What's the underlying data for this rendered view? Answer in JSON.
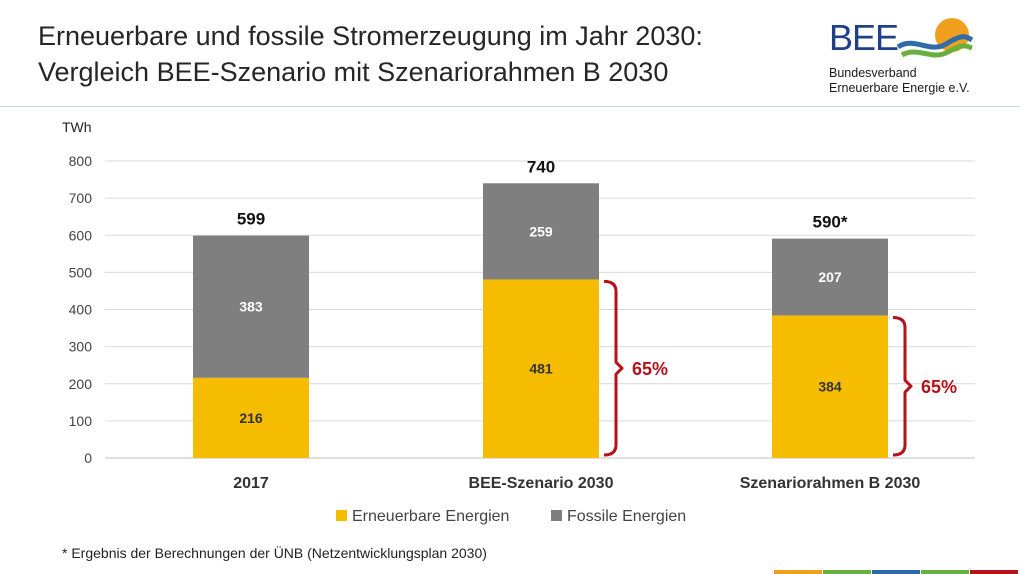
{
  "header": {
    "title_line1": "Erneuerbare und fossile Stromerzeugung im Jahr 2030:",
    "title_line2": "Vergleich BEE-Szenario mit Szenariorahmen B 2030"
  },
  "logo": {
    "name": "BEE",
    "line1": "Bundesverband",
    "line2": "Erneuerbare Energie e.V."
  },
  "footnote": "* Ergebnis der Berechnungen der ÜNB (Netzentwicklungsplan 2030)",
  "colors": {
    "renewable": "#F5BC00",
    "fossil": "#7F7F7F",
    "bracket": "#B5121B",
    "grid": "#D9D9D9",
    "logo_blue": "#1F3F87",
    "logo_green": "#6AAF3D",
    "logo_orange": "#F0A01E",
    "bottom_stripe": [
      "#F0A01E",
      "#6AAF3D",
      "#2D6CA8",
      "#6AAF3D",
      "#B5121B"
    ]
  },
  "chart_data": {
    "type": "bar",
    "stacked": true,
    "ylabel": "TWh",
    "ylim": [
      0,
      800
    ],
    "yticks": [
      0,
      100,
      200,
      300,
      400,
      500,
      600,
      700,
      800
    ],
    "grid": true,
    "legend_position": "bottom",
    "categories": [
      "2017",
      "BEE-Szenario 2030",
      "Szenariorahmen B 2030"
    ],
    "series": [
      {
        "name": "Erneuerbare Energien",
        "values": [
          216,
          481,
          384
        ]
      },
      {
        "name": "Fossile Energien",
        "values": [
          383,
          259,
          207
        ]
      }
    ],
    "totals": [
      "599",
      "740",
      "590*"
    ],
    "annotations": [
      {
        "category": "BEE-Szenario 2030",
        "text": "65%"
      },
      {
        "category": "Szenariorahmen B 2030",
        "text": "65%"
      }
    ]
  }
}
